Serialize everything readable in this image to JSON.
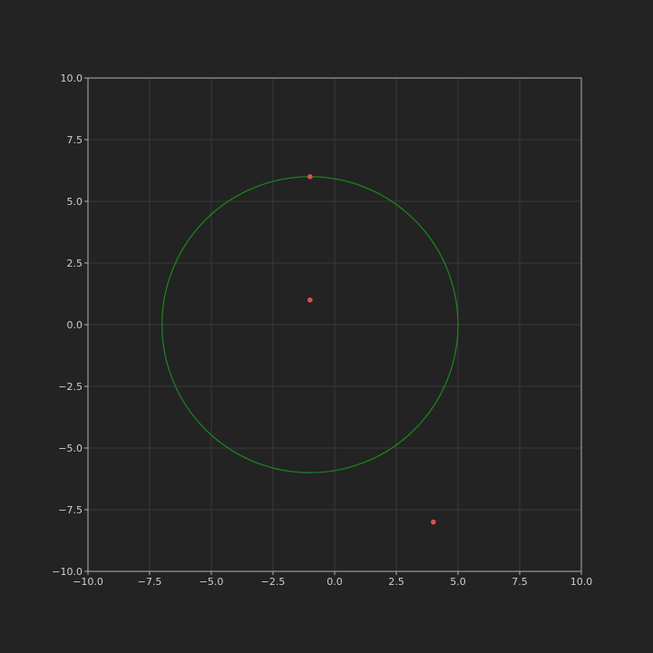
{
  "colors": {
    "background": "#232323",
    "grid": "#3a3a3a",
    "frame": "#b0b0b0",
    "circle": "#1a8a1a",
    "points": "#d9534f",
    "tick_text": "#cfcfcf"
  },
  "chart_data": {
    "type": "scatter",
    "title": "",
    "xlabel": "",
    "ylabel": "",
    "xlim": [
      -10,
      10
    ],
    "ylim": [
      -10,
      10
    ],
    "grid": true,
    "legend": "none",
    "x_ticks": [
      -10,
      -7.5,
      -5,
      -2.5,
      0,
      2.5,
      5,
      7.5,
      10
    ],
    "y_ticks": [
      -10,
      -7.5,
      -5,
      -2.5,
      0,
      2.5,
      5,
      7.5,
      10
    ],
    "x_tick_labels": [
      "−10.0",
      "−7.5",
      "−5.0",
      "−2.5",
      "0.0",
      "2.5",
      "5.0",
      "7.5",
      "10.0"
    ],
    "y_tick_labels": [
      "−10.0",
      "−7.5",
      "−5.0",
      "−2.5",
      "0.0",
      "2.5",
      "5.0",
      "7.5",
      "10.0"
    ],
    "points": [
      {
        "x": -1,
        "y": 6
      },
      {
        "x": -1,
        "y": 1
      },
      {
        "x": 4,
        "y": -8
      }
    ],
    "circle": {
      "cx": -1,
      "cy": 0,
      "r": 6
    }
  }
}
